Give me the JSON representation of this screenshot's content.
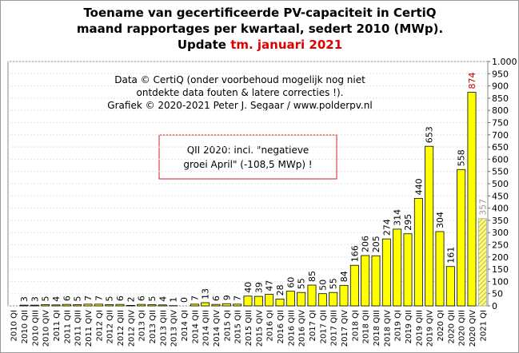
{
  "chart_data": {
    "type": "bar",
    "title_lines": [
      "Toename van gecertificeerde PV-capaciteit in CertiQ",
      "maand rapportages per kwartaal, sedert 2010 (MWp)."
    ],
    "title_update": "Update",
    "title_update_red": "tm. januari 2021",
    "info_lines": [
      "Data © CertiQ (onder voorbehoud mogelijk  nog niet",
      "ontdekte data fouten & latere correcties !).",
      "Grafiek  © 2020-2021 Peter J. Segaar / www.polderpv.nl"
    ],
    "annotation_lines": [
      "QII 2020: incl. \"negatieve",
      "groei April\"  (-108,5 MWp) !"
    ],
    "categories": [
      "2010 QI",
      "2010 QII",
      "2010 QIII",
      "2010 QIV",
      "2011 QI",
      "2011 QII",
      "2011 QIII",
      "2011 QIV",
      "2012 QI",
      "2012 QII",
      "2012 QIII",
      "2012 QIV",
      "2013 QI",
      "2013 QII",
      "2013 QIII",
      "2013 QIV",
      "2014 QI",
      "2014 QII",
      "2014 QIII",
      "2014 QIV",
      "2015 QI",
      "2015 QII",
      "2015 QIII",
      "2015 QIV",
      "2016 QI",
      "2016 QII",
      "2016 QIII",
      "2016 QIV",
      "2017 QI",
      "2017 QII",
      "2017 QIII",
      "2017 QIV",
      "2018 QI",
      "2018 QII",
      "2018 QIII",
      "2018 QIV",
      "2019 QI",
      "2019 QII",
      "2019 QIII",
      "2019 QIV",
      "2020 QI",
      "2020 QII",
      "2020 QIII",
      "2020 QIV",
      "2021 QI"
    ],
    "values": [
      null,
      3,
      3,
      5,
      4,
      6,
      5,
      7,
      7,
      5,
      6,
      2,
      6,
      5,
      4,
      1,
      0,
      7,
      13,
      6,
      9,
      7,
      40,
      39,
      47,
      28,
      60,
      55,
      85,
      50,
      55,
      84,
      166,
      206,
      205,
      274,
      314,
      295,
      440,
      653,
      304,
      161,
      558,
      874,
      357
    ],
    "color": "#ffff00",
    "edge_color": "#000000",
    "latest_label_color": "#cc0000",
    "partial_label_color": "#999999",
    "ylim": [
      0,
      1000
    ],
    "yticks": [
      0,
      50,
      100,
      150,
      200,
      250,
      300,
      350,
      400,
      450,
      500,
      550,
      600,
      650,
      700,
      750,
      800,
      850,
      900,
      950,
      {
        "value": 1000,
        "label": "1.000"
      }
    ],
    "grid": true
  }
}
